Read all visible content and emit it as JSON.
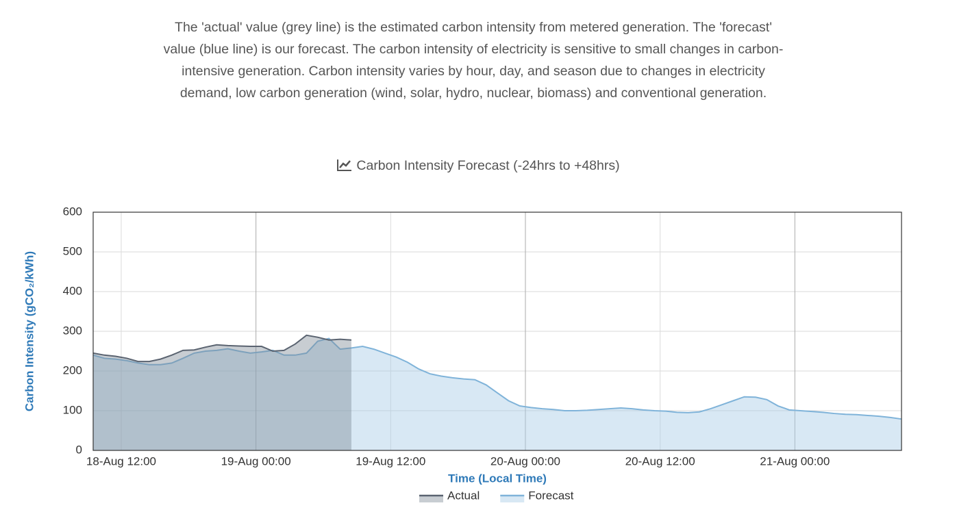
{
  "description": "The 'actual' value (grey line) is the estimated carbon intensity from metered generation. The 'forecast' value (blue line) is our forecast. The carbon intensity of electricity is sensitive to small changes in carbon-intensive generation. Carbon intensity varies by hour, day, and season due to changes in electricity demand, low carbon generation (wind, solar, hydro, nuclear, biomass) and conventional generation.",
  "chart_data": {
    "type": "area",
    "title": "Carbon Intensity Forecast (-24hrs to +48hrs)",
    "x_label": "Time (Local Time)",
    "y_label": "Carbon Intensity (gCO₂/kWh)",
    "x": [
      "18-Aug 09:30",
      "18-Aug 10:30",
      "18-Aug 11:30",
      "18-Aug 12:30",
      "18-Aug 13:30",
      "18-Aug 14:30",
      "18-Aug 15:30",
      "18-Aug 16:30",
      "18-Aug 17:30",
      "18-Aug 18:30",
      "18-Aug 19:30",
      "18-Aug 20:30",
      "18-Aug 21:30",
      "18-Aug 22:30",
      "18-Aug 23:30",
      "19-Aug 00:30",
      "19-Aug 01:30",
      "19-Aug 02:30",
      "19-Aug 03:30",
      "19-Aug 04:30",
      "19-Aug 05:30",
      "19-Aug 06:30",
      "19-Aug 07:30",
      "19-Aug 08:30",
      "19-Aug 09:30",
      "19-Aug 10:30",
      "19-Aug 11:30",
      "19-Aug 12:30",
      "19-Aug 13:30",
      "19-Aug 14:30",
      "19-Aug 15:30",
      "19-Aug 16:30",
      "19-Aug 17:30",
      "19-Aug 18:30",
      "19-Aug 19:30",
      "19-Aug 20:30",
      "19-Aug 21:30",
      "19-Aug 22:30",
      "19-Aug 23:30",
      "20-Aug 00:30",
      "20-Aug 01:30",
      "20-Aug 02:30",
      "20-Aug 03:30",
      "20-Aug 04:30",
      "20-Aug 05:30",
      "20-Aug 06:30",
      "20-Aug 07:30",
      "20-Aug 08:30",
      "20-Aug 09:30",
      "20-Aug 10:30",
      "20-Aug 11:30",
      "20-Aug 12:30",
      "20-Aug 13:30",
      "20-Aug 14:30",
      "20-Aug 15:30",
      "20-Aug 16:30",
      "20-Aug 17:30",
      "20-Aug 18:30",
      "20-Aug 19:30",
      "20-Aug 20:30",
      "20-Aug 21:30",
      "20-Aug 22:30",
      "20-Aug 23:30",
      "21-Aug 00:30",
      "21-Aug 01:30",
      "21-Aug 02:30",
      "21-Aug 03:30",
      "21-Aug 04:30",
      "21-Aug 05:30",
      "21-Aug 06:30",
      "21-Aug 07:30",
      "21-Aug 08:30",
      "21-Aug 09:30"
    ],
    "series": [
      {
        "name": "Actual",
        "color": "#5a6370",
        "fill": "rgba(125,135,148,0.42)",
        "values": [
          245,
          240,
          237,
          232,
          224,
          224,
          230,
          240,
          252,
          253,
          260,
          266,
          264,
          263,
          262,
          262,
          250,
          252,
          268,
          290,
          285,
          278,
          280,
          278,
          null,
          null,
          null,
          null,
          null,
          null,
          null,
          null,
          null,
          null,
          null,
          null,
          null,
          null,
          null,
          null,
          null,
          null,
          null,
          null,
          null,
          null,
          null,
          null,
          null,
          null,
          null,
          null,
          null,
          null,
          null,
          null,
          null,
          null,
          null,
          null,
          null,
          null,
          null,
          null,
          null,
          null,
          null,
          null,
          null,
          null,
          null,
          null,
          null
        ]
      },
      {
        "name": "Forecast",
        "color": "#7fb3d9",
        "fill": "rgba(168,204,230,0.45)",
        "values": [
          240,
          232,
          230,
          226,
          220,
          216,
          216,
          220,
          232,
          245,
          250,
          252,
          256,
          250,
          245,
          248,
          252,
          240,
          240,
          245,
          275,
          282,
          255,
          258,
          262,
          255,
          245,
          235,
          222,
          205,
          193,
          187,
          183,
          180,
          178,
          165,
          145,
          125,
          112,
          108,
          105,
          103,
          100,
          100,
          101,
          103,
          105,
          107,
          105,
          102,
          100,
          99,
          96,
          95,
          97,
          105,
          115,
          125,
          135,
          134,
          128,
          112,
          102,
          100,
          98,
          96,
          93,
          91,
          90,
          88,
          86,
          83,
          79
        ]
      }
    ],
    "xlim": [
      "18-Aug 09:30",
      "21-Aug 09:30"
    ],
    "xticks": [
      "18-Aug 12:00",
      "19-Aug 00:00",
      "19-Aug 12:00",
      "20-Aug 00:00",
      "20-Aug 12:00",
      "21-Aug 00:00"
    ],
    "ylim": [
      0,
      600
    ],
    "yticks": [
      0,
      100,
      200,
      300,
      400,
      500,
      600
    ],
    "grid": true,
    "legend": "bottom"
  }
}
